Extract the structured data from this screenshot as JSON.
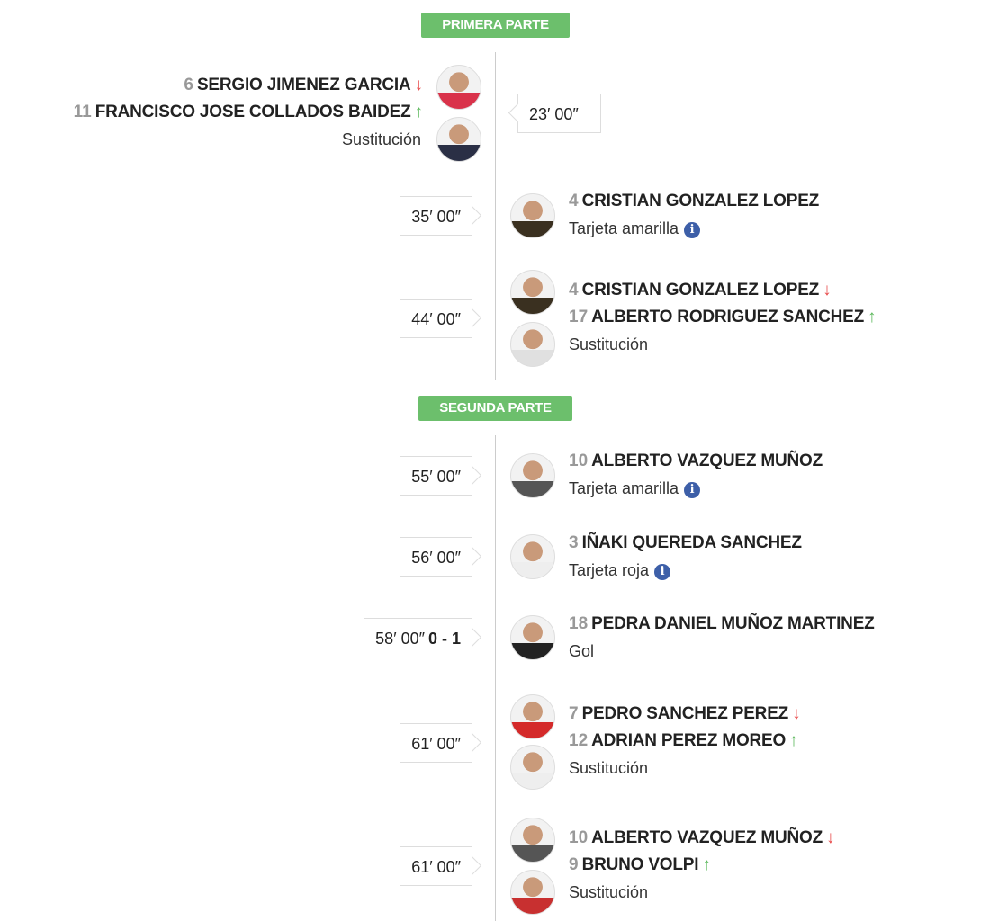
{
  "sections": [
    {
      "label": "PRIMERA PARTE"
    },
    {
      "label": "SEGUNDA PARTE"
    }
  ],
  "colors": {
    "badge": "#6cbf6c",
    "out": "#e84c4c",
    "in": "#5cb85c",
    "info": "#3d5fa8"
  },
  "events": [
    {
      "side": "left",
      "time": "23′ 00″",
      "score": "",
      "players": [
        {
          "num": "6",
          "name": "SERGIO JIMENEZ GARCIA",
          "dir": "down",
          "shirt": "#d9324a"
        },
        {
          "num": "11",
          "name": "FRANCISCO JOSE COLLADOS BAIDEZ",
          "dir": "up",
          "shirt": "#2a2f45"
        }
      ],
      "type": "Sustitución",
      "info": false
    },
    {
      "side": "right",
      "time": "35′ 00″",
      "score": "",
      "players": [
        {
          "num": "4",
          "name": "CRISTIAN GONZALEZ LOPEZ",
          "dir": "",
          "shirt": "#3a3020"
        }
      ],
      "type": "Tarjeta amarilla",
      "info": true
    },
    {
      "side": "right",
      "time": "44′ 00″",
      "score": "",
      "players": [
        {
          "num": "4",
          "name": "CRISTIAN GONZALEZ LOPEZ",
          "dir": "down",
          "shirt": "#3a3020"
        },
        {
          "num": "17",
          "name": "ALBERTO RODRIGUEZ SANCHEZ",
          "dir": "up",
          "shirt": "#e0e0e0"
        }
      ],
      "type": "Sustitución",
      "info": false
    },
    {
      "side": "right",
      "time": "55′ 00″",
      "score": "",
      "players": [
        {
          "num": "10",
          "name": "ALBERTO VAZQUEZ MUÑOZ",
          "dir": "",
          "shirt": "#555"
        }
      ],
      "type": "Tarjeta amarilla",
      "info": true
    },
    {
      "side": "right",
      "time": "56′ 00″",
      "score": "",
      "players": [
        {
          "num": "3",
          "name": "IÑAKI QUEREDA SANCHEZ",
          "dir": "",
          "shirt": "#eee"
        }
      ],
      "type": "Tarjeta roja",
      "info": true
    },
    {
      "side": "right",
      "time": "58′ 00″",
      "score": "0 - 1",
      "players": [
        {
          "num": "18",
          "name": "PEDRA DANIEL MUÑOZ MARTINEZ",
          "dir": "",
          "shirt": "#222"
        }
      ],
      "type": "Gol",
      "info": false
    },
    {
      "side": "right",
      "time": "61′ 00″",
      "score": "",
      "players": [
        {
          "num": "7",
          "name": "PEDRO SANCHEZ PEREZ",
          "dir": "down",
          "shirt": "#d42a2a"
        },
        {
          "num": "12",
          "name": "ADRIAN PEREZ MOREO",
          "dir": "up",
          "shirt": "#eee"
        }
      ],
      "type": "Sustitución",
      "info": false
    },
    {
      "side": "right",
      "time": "61′ 00″",
      "score": "",
      "players": [
        {
          "num": "10",
          "name": "ALBERTO VAZQUEZ MUÑOZ",
          "dir": "down",
          "shirt": "#555"
        },
        {
          "num": "9",
          "name": "BRUNO VOLPI",
          "dir": "up",
          "shirt": "#c83030"
        }
      ],
      "type": "Sustitución",
      "info": false
    }
  ]
}
